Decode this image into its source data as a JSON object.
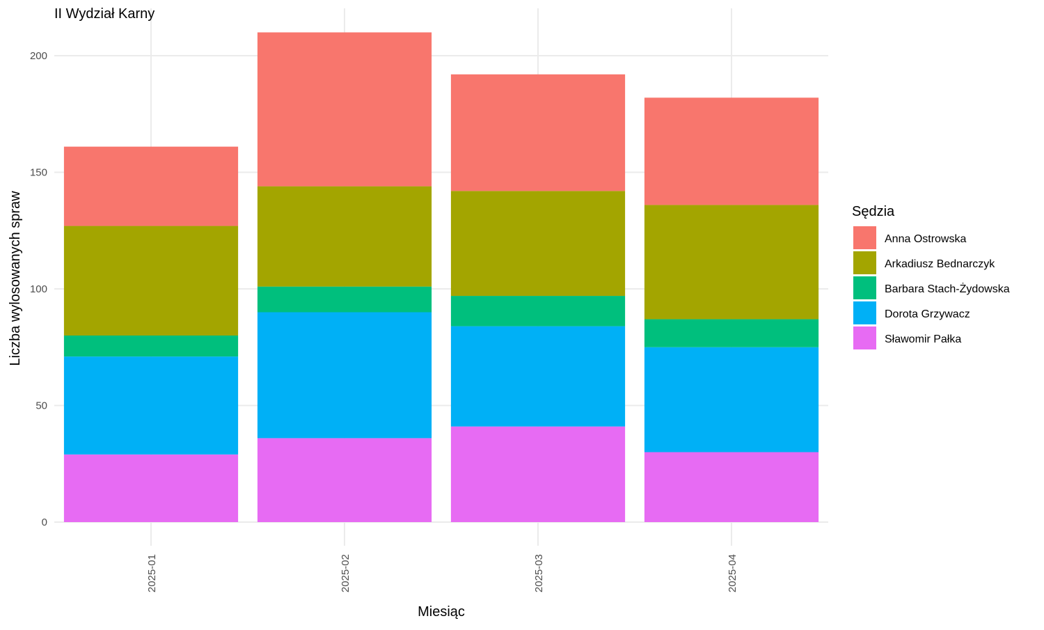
{
  "chart_data": {
    "type": "bar",
    "stacked": true,
    "title": "II Wydział Karny",
    "xlabel": "Miesiąc",
    "ylabel": "Liczba wylosowanych spraw",
    "ylim": [
      0,
      210
    ],
    "yticks": [
      0,
      50,
      100,
      150,
      200
    ],
    "grid": true,
    "legend_position": "right",
    "legend_title": "Sędzia",
    "categories": [
      "2025-01",
      "2025-02",
      "2025-03",
      "2025-04"
    ],
    "series": [
      {
        "name": "Anna Ostrowska",
        "color": "#F8766D",
        "values": [
          34,
          66,
          50,
          46
        ]
      },
      {
        "name": "Arkadiusz Bednarczyk",
        "color": "#A3A500",
        "values": [
          47,
          43,
          45,
          49
        ]
      },
      {
        "name": "Barbara Stach-Żydowska",
        "color": "#00BF7D",
        "values": [
          9,
          11,
          13,
          12
        ]
      },
      {
        "name": "Dorota Grzywacz",
        "color": "#00B0F6",
        "values": [
          42,
          54,
          43,
          45
        ]
      },
      {
        "name": "Sławomir Pałka",
        "color": "#E76BF3",
        "values": [
          29,
          36,
          41,
          30
        ]
      }
    ]
  }
}
